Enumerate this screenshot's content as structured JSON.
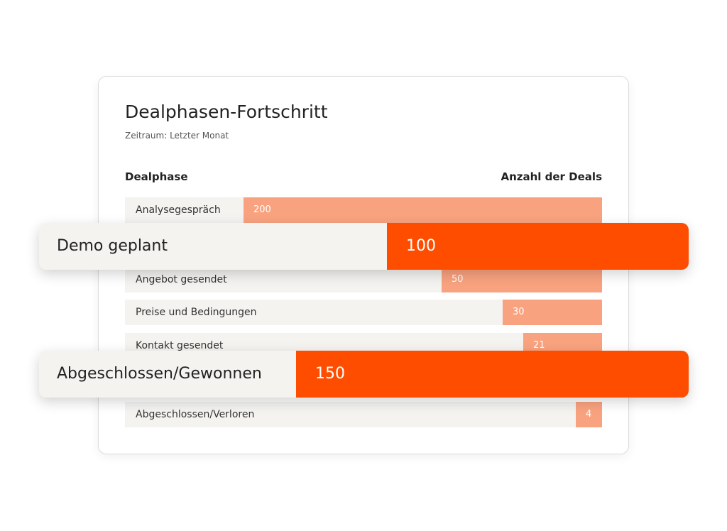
{
  "panel": {
    "title": "Dealphasen-Fortschritt",
    "subtitle": "Zeitraum: Letzter Monat",
    "header": {
      "phase": "Dealphase",
      "count": "Anzahl der Deals"
    },
    "rows": [
      {
        "label": "Analysegespräch",
        "value": 200
      },
      {
        "label": "Angebot gesendet",
        "value": 50
      },
      {
        "label": "Preise und Bedingungen",
        "value": 30
      },
      {
        "label": "Kontakt gesendet",
        "value": 21
      },
      {
        "label": "Abgeschlossen/Verloren",
        "value": 4
      }
    ]
  },
  "highlights": [
    {
      "label": "Demo geplant",
      "value": 100
    },
    {
      "label": "Abgeschlossen/Gewonnen",
      "value": 150
    }
  ]
}
